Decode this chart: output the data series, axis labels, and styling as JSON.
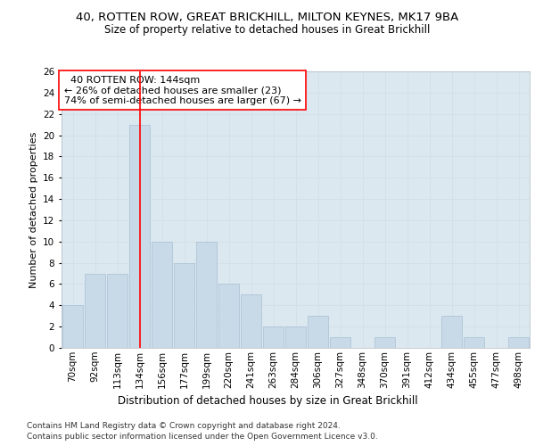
{
  "title1": "40, ROTTEN ROW, GREAT BRICKHILL, MILTON KEYNES, MK17 9BA",
  "title2": "Size of property relative to detached houses in Great Brickhill",
  "xlabel": "Distribution of detached houses by size in Great Brickhill",
  "ylabel": "Number of detached properties",
  "footer1": "Contains HM Land Registry data © Crown copyright and database right 2024.",
  "footer2": "Contains public sector information licensed under the Open Government Licence v3.0.",
  "categories": [
    "70sqm",
    "92sqm",
    "113sqm",
    "134sqm",
    "156sqm",
    "177sqm",
    "199sqm",
    "220sqm",
    "241sqm",
    "263sqm",
    "284sqm",
    "306sqm",
    "327sqm",
    "348sqm",
    "370sqm",
    "391sqm",
    "412sqm",
    "434sqm",
    "455sqm",
    "477sqm",
    "498sqm"
  ],
  "values": [
    4,
    7,
    7,
    21,
    10,
    8,
    10,
    6,
    5,
    2,
    2,
    3,
    1,
    0,
    1,
    0,
    0,
    3,
    1,
    0,
    1
  ],
  "bar_color": "#c8d9e8",
  "bar_edgecolor": "#a8c0d4",
  "grid_color": "#d4dfe8",
  "background_color": "#dce8f0",
  "annotation_box_text": "  40 ROTTEN ROW: 144sqm\n← 26% of detached houses are smaller (23)\n74% of semi-detached houses are larger (67) →",
  "annotation_box_edgecolor": "red",
  "redline_bar_index": 3,
  "ylim": [
    0,
    26
  ],
  "yticks": [
    0,
    2,
    4,
    6,
    8,
    10,
    12,
    14,
    16,
    18,
    20,
    22,
    24,
    26
  ],
  "title1_fontsize": 9.5,
  "title2_fontsize": 8.5,
  "xlabel_fontsize": 8.5,
  "ylabel_fontsize": 8,
  "tick_fontsize": 7.5,
  "annotation_fontsize": 8,
  "footer_fontsize": 6.5
}
